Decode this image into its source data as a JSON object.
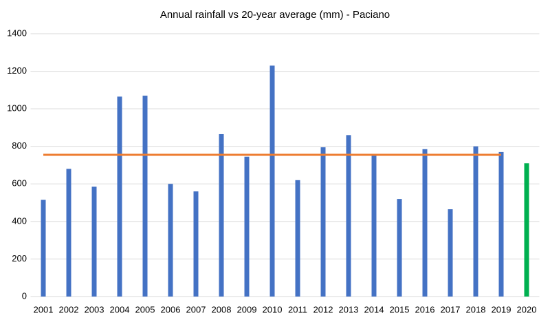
{
  "chart_data": {
    "type": "bar",
    "title": "Annual rainfall vs 20-year average (mm) - Paciano",
    "categories": [
      "2001",
      "2002",
      "2003",
      "2004",
      "2005",
      "2006",
      "2007",
      "2008",
      "2009",
      "2010",
      "2011",
      "2012",
      "2013",
      "2014",
      "2015",
      "2016",
      "2017",
      "2018",
      "2019",
      "2020"
    ],
    "series": [
      {
        "type": "bar",
        "values": [
          515,
          680,
          585,
          1065,
          1070,
          600,
          560,
          865,
          745,
          1230,
          620,
          795,
          860,
          750,
          520,
          785,
          465,
          800,
          770,
          710
        ],
        "colors": [
          "#4472c4",
          "#4472c4",
          "#4472c4",
          "#4472c4",
          "#4472c4",
          "#4472c4",
          "#4472c4",
          "#4472c4",
          "#4472c4",
          "#4472c4",
          "#4472c4",
          "#4472c4",
          "#4472c4",
          "#4472c4",
          "#4472c4",
          "#4472c4",
          "#4472c4",
          "#4472c4",
          "#4472c4",
          "#00b050"
        ]
      },
      {
        "type": "line",
        "color": "#ed7d31",
        "values": [
          755,
          755,
          755,
          755,
          755,
          755,
          755,
          755,
          755,
          755,
          755,
          755,
          755,
          755,
          755,
          755,
          755,
          755,
          755,
          null
        ]
      }
    ],
    "ylim": [
      0,
      1400
    ],
    "yticks": [
      0,
      200,
      400,
      600,
      800,
      1000,
      1200,
      1400
    ],
    "grid": true
  }
}
